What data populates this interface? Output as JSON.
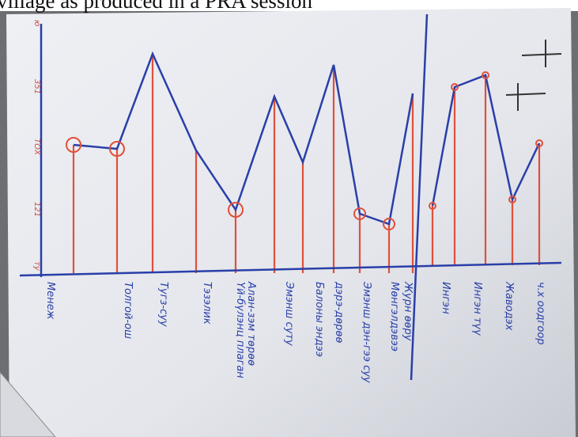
{
  "caption": "village as produced in a PRA session",
  "scale_labels": [
    "ту",
    "121",
    "ТОХ",
    "351",
    "ю"
  ],
  "labels": [
    "Менеж",
    "Толгой-ош",
    "Тугз-суу",
    "Тэзэлик",
    "Үй-бүлэнц плаган",
    "Алан-зэм төрөө",
    "Эмэнш суту",
    "Балоны эндээ",
    "дэрэ-дөрөө",
    "Эмэнш дэн-гээ суу",
    "Мөнгэлдэвээ",
    "Журн өөру",
    "Ингэн",
    "Ингэн түү",
    "Жаводэх",
    "ч.х оодгоор"
  ]
}
